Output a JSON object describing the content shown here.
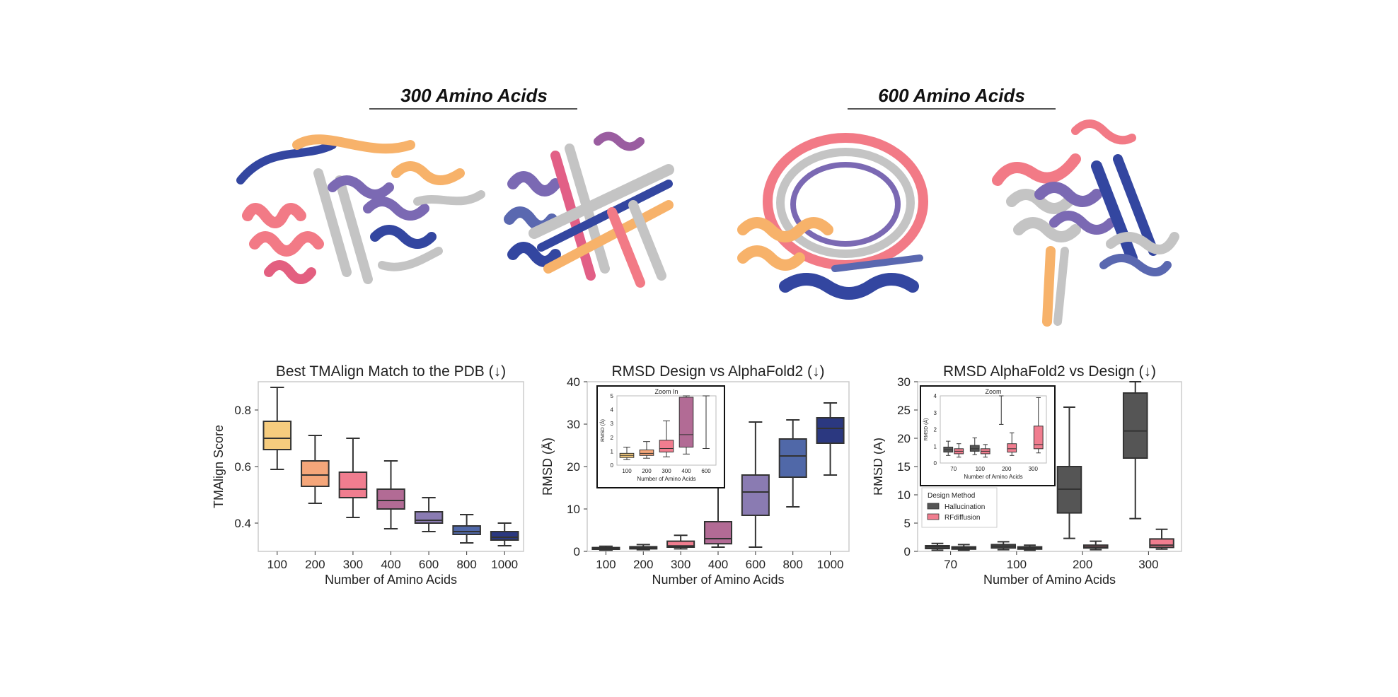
{
  "figure": {
    "groups": [
      {
        "title": "300 Amino Acids"
      },
      {
        "title": "600 Amino Acids"
      }
    ],
    "structures": [
      {
        "name": "protein-structure-300-a",
        "colors": [
          "#f7b26a",
          "#f27a86",
          "#7b69b3",
          "#3346a0",
          "#c4c4c4"
        ]
      },
      {
        "name": "protein-structure-300-b",
        "colors": [
          "#f7b26a",
          "#e25f86",
          "#9a5da0",
          "#3346a0",
          "#c4c4c4"
        ]
      },
      {
        "name": "protein-structure-600-a",
        "colors": [
          "#f7b26a",
          "#f27a86",
          "#7b69b3",
          "#3346a0",
          "#c4c4c4"
        ]
      },
      {
        "name": "protein-structure-600-b",
        "colors": [
          "#f7b26a",
          "#f27a86",
          "#7b69b3",
          "#3346a0",
          "#c4c4c4"
        ]
      }
    ]
  },
  "chart_data": [
    {
      "type": "box",
      "title": "Best TMAlign Match to the PDB (↓)",
      "xlabel": "Number of Amino Acids",
      "ylabel": "TMAlign Score",
      "ylim": [
        0.3,
        0.9
      ],
      "yticks": [
        0.4,
        0.6,
        0.8
      ],
      "categories": [
        "100",
        "200",
        "300",
        "400",
        "600",
        "800",
        "1000"
      ],
      "colors": [
        "#f6cc7e",
        "#f5a67a",
        "#f07d8f",
        "#b26b95",
        "#8a7bb2",
        "#5068a8",
        "#2b3880"
      ],
      "boxes": [
        {
          "min": 0.59,
          "q1": 0.66,
          "median": 0.7,
          "q3": 0.76,
          "max": 0.88
        },
        {
          "min": 0.47,
          "q1": 0.53,
          "median": 0.57,
          "q3": 0.62,
          "max": 0.71
        },
        {
          "min": 0.42,
          "q1": 0.49,
          "median": 0.52,
          "q3": 0.58,
          "max": 0.7
        },
        {
          "min": 0.38,
          "q1": 0.45,
          "median": 0.48,
          "q3": 0.52,
          "max": 0.62
        },
        {
          "min": 0.37,
          "q1": 0.4,
          "median": 0.41,
          "q3": 0.44,
          "max": 0.49
        },
        {
          "min": 0.33,
          "q1": 0.36,
          "median": 0.37,
          "q3": 0.39,
          "max": 0.43
        },
        {
          "min": 0.32,
          "q1": 0.34,
          "median": 0.35,
          "q3": 0.37,
          "max": 0.4
        }
      ]
    },
    {
      "type": "box",
      "title": "RMSD Design vs AlphaFold2 (↓)",
      "xlabel": "Number of Amino Acids",
      "ylabel": "RMSD (Å)",
      "ylim": [
        0,
        40
      ],
      "yticks": [
        0,
        10,
        20,
        30,
        40
      ],
      "categories": [
        "100",
        "200",
        "300",
        "400",
        "600",
        "800",
        "1000"
      ],
      "colors": [
        "#f6cc7e",
        "#f5a67a",
        "#f07d8f",
        "#b26b95",
        "#8a7bb2",
        "#5068a8",
        "#2b3880"
      ],
      "boxes": [
        {
          "min": 0.3,
          "q1": 0.5,
          "median": 0.7,
          "q3": 0.9,
          "max": 1.2
        },
        {
          "min": 0.4,
          "q1": 0.6,
          "median": 0.9,
          "q3": 1.1,
          "max": 1.6
        },
        {
          "min": 0.6,
          "q1": 1.0,
          "median": 1.3,
          "q3": 2.4,
          "max": 3.8
        },
        {
          "min": 1.0,
          "q1": 1.8,
          "median": 3.0,
          "q3": 7.0,
          "max": 15.5
        },
        {
          "min": 1.0,
          "q1": 8.5,
          "median": 14.0,
          "q3": 18.0,
          "max": 30.5
        },
        {
          "min": 10.5,
          "q1": 17.5,
          "median": 22.5,
          "q3": 26.5,
          "max": 31.0
        },
        {
          "min": 18.0,
          "q1": 25.5,
          "median": 29.0,
          "q3": 31.5,
          "max": 35.0
        }
      ],
      "inset": {
        "title": "Zoom In",
        "xlabel": "Number of Amino Acids",
        "ylabel": "RMSD (Å)",
        "ylim": [
          0,
          5
        ],
        "yticks": [
          0,
          1,
          2,
          3,
          4,
          5
        ],
        "categories": [
          "100",
          "200",
          "300",
          "400",
          "600"
        ],
        "boxes": [
          {
            "min": 0.4,
            "q1": 0.55,
            "median": 0.7,
            "q3": 0.85,
            "max": 1.3
          },
          {
            "min": 0.5,
            "q1": 0.7,
            "median": 0.85,
            "q3": 1.1,
            "max": 1.7
          },
          {
            "min": 0.6,
            "q1": 0.95,
            "median": 1.2,
            "q3": 1.8,
            "max": 3.2
          },
          {
            "min": 0.8,
            "q1": 1.3,
            "median": 2.2,
            "q3": 4.9,
            "max": 5.0
          },
          {
            "min": 1.2,
            "q1": null,
            "median": null,
            "q3": null,
            "max": 5.0
          }
        ]
      }
    },
    {
      "type": "box",
      "title": "RMSD AlphaFold2 vs Design (↓)",
      "xlabel": "Number of Amino Acids",
      "ylabel": "RMSD (Å)",
      "ylim": [
        0,
        30
      ],
      "yticks": [
        0,
        5,
        10,
        15,
        20,
        25,
        30
      ],
      "categories": [
        "70",
        "100",
        "200",
        "300"
      ],
      "legend": {
        "title": "Design Method",
        "position": "lower-left"
      },
      "series": [
        {
          "name": "Hallucination",
          "color": "#555555",
          "boxes": [
            {
              "min": 0.2,
              "q1": 0.5,
              "median": 0.8,
              "q3": 1.0,
              "max": 1.4
            },
            {
              "min": 0.3,
              "q1": 0.6,
              "median": 0.9,
              "q3": 1.2,
              "max": 1.7
            },
            {
              "min": 2.3,
              "q1": 6.8,
              "median": 11.0,
              "q3": 15.0,
              "max": 25.5
            },
            {
              "min": 5.8,
              "q1": 16.5,
              "median": 21.3,
              "q3": 28.0,
              "max": 30.0
            }
          ]
        },
        {
          "name": "RFdiffusion",
          "color": "#f07d8f",
          "boxes": [
            {
              "min": 0.2,
              "q1": 0.4,
              "median": 0.6,
              "q3": 0.8,
              "max": 1.2
            },
            {
              "min": 0.2,
              "q1": 0.4,
              "median": 0.6,
              "q3": 0.8,
              "max": 1.1
            },
            {
              "min": 0.3,
              "q1": 0.6,
              "median": 0.8,
              "q3": 1.1,
              "max": 1.8
            },
            {
              "min": 0.4,
              "q1": 0.7,
              "median": 1.1,
              "q3": 2.2,
              "max": 3.9
            }
          ]
        }
      ],
      "inset": {
        "title": "Zoom",
        "xlabel": "Number of Amino Acids",
        "ylabel": "RMSD (Å)",
        "ylim": [
          0,
          4
        ],
        "yticks": [
          0,
          1,
          2,
          3,
          4
        ],
        "categories": [
          "70",
          "100",
          "200",
          "300"
        ],
        "series": [
          {
            "name": "Hallucination",
            "boxes": [
              {
                "min": 0.45,
                "q1": 0.65,
                "median": 0.8,
                "q3": 0.95,
                "max": 1.3
              },
              {
                "min": 0.5,
                "q1": 0.7,
                "median": 0.85,
                "q3": 1.05,
                "max": 1.5
              },
              {
                "min": 2.3,
                "q1": null,
                "median": null,
                "q3": null,
                "max": 4.0
              },
              {
                "min": null,
                "q1": null,
                "median": null,
                "q3": null,
                "max": null
              }
            ]
          },
          {
            "name": "RFdiffusion",
            "boxes": [
              {
                "min": 0.35,
                "q1": 0.55,
                "median": 0.7,
                "q3": 0.85,
                "max": 1.15
              },
              {
                "min": 0.35,
                "q1": 0.55,
                "median": 0.7,
                "q3": 0.85,
                "max": 1.1
              },
              {
                "min": 0.45,
                "q1": 0.65,
                "median": 0.85,
                "q3": 1.15,
                "max": 1.8
              },
              {
                "min": 0.6,
                "q1": 0.85,
                "median": 1.1,
                "q3": 2.2,
                "max": 3.9
              }
            ]
          }
        ]
      }
    }
  ]
}
